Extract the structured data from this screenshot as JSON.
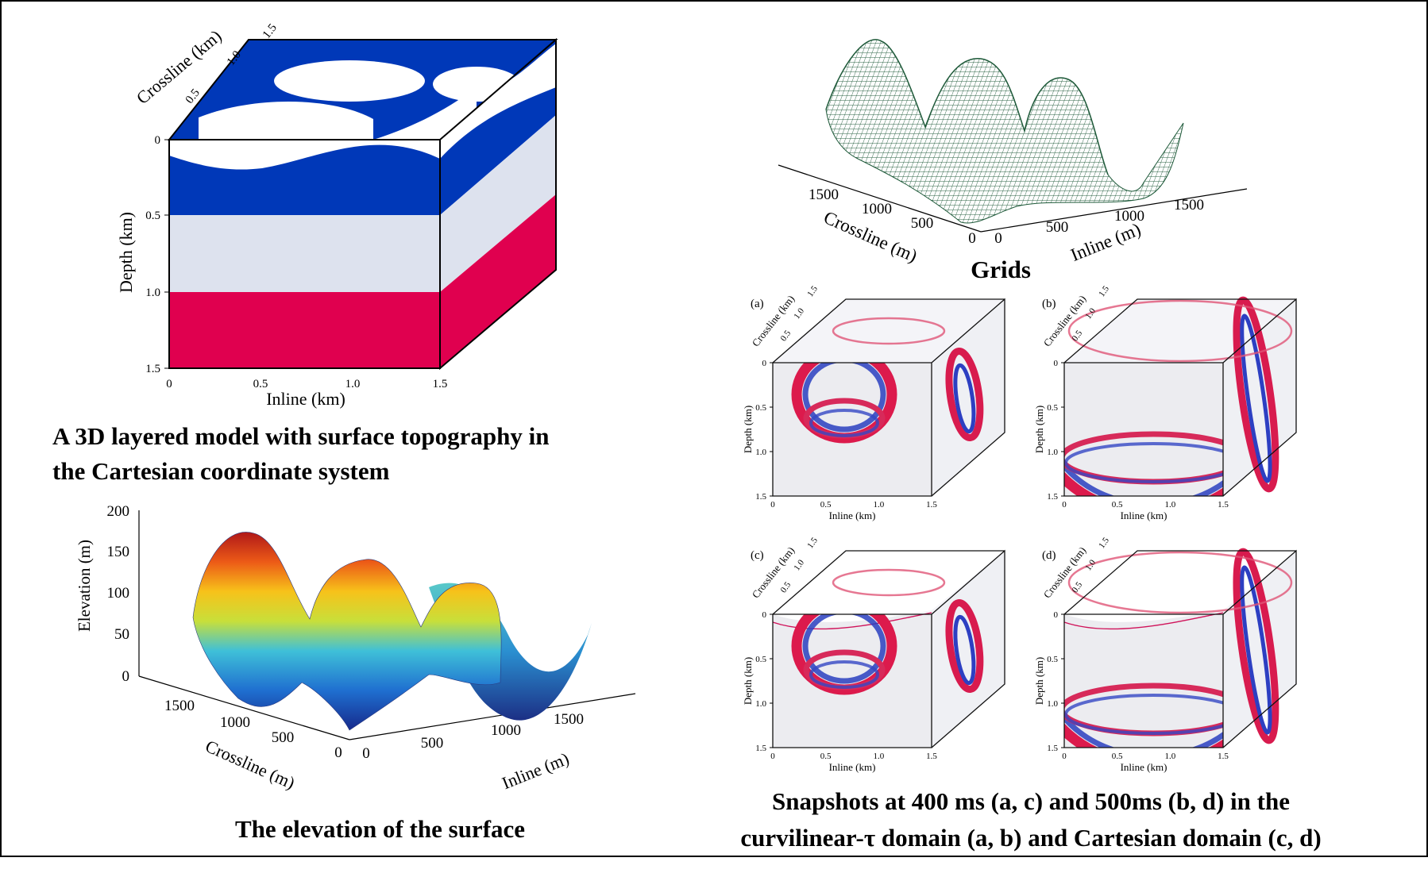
{
  "captions": {
    "model": [
      "A 3D layered model with surface topography in",
      "the Cartesian coordinate system"
    ],
    "elevation": "The elevation of the surface",
    "grids": "Grids",
    "snapshots": [
      "Snapshots at 400 ms (a, c) and 500ms (b, d) in the",
      "curvilinear-τ  domain (a, b) and Cartesian domain (c, d)"
    ]
  },
  "model_cube": {
    "depth_label": "Depth (km)",
    "inline_label": "Inline (km)",
    "crossline_label": "Crossline (km)",
    "depth_ticks": [
      "0",
      "0.5",
      "1.0",
      "1.5"
    ],
    "inline_ticks": [
      "0",
      "0.5",
      "1.0",
      "1.5"
    ],
    "crossline_ticks": [
      "0.5",
      "1.0",
      "1.5"
    ],
    "colors": {
      "top_layer": "#0038b8",
      "middle_layer": "#dde2ee",
      "bottom_layer": "#e0004f"
    }
  },
  "elevation_plot": {
    "ylabel": "Elevation (m)",
    "xlabel": "Crossline (m)",
    "zlabel": "Inline (m)",
    "y_ticks": [
      "200",
      "150",
      "100",
      "50",
      "0"
    ],
    "crossline_ticks": [
      "1500",
      "1000",
      "500",
      "0"
    ],
    "inline_ticks": [
      "0",
      "500",
      "1000",
      "1500"
    ]
  },
  "grid_plot": {
    "crossline_label": "Crossline (m)",
    "inline_label": "Inline (m)",
    "crossline_ticks": [
      "1500",
      "1000",
      "500",
      "0"
    ],
    "inline_ticks": [
      "0",
      "500",
      "1000",
      "1500"
    ],
    "mesh_color": "#1f5a3a"
  },
  "snapshots": [
    {
      "panel": "(a)"
    },
    {
      "panel": "(b)"
    },
    {
      "panel": "(c)"
    },
    {
      "panel": "(d)"
    }
  ],
  "snapshot_axes": {
    "depth_label": "Depth (km)",
    "inline_label": "Inline (km)",
    "crossline_label": "Crossline (km)",
    "depth_ticks": [
      "0",
      "0.5",
      "1.0",
      "1.5"
    ],
    "inline_ticks": [
      "0",
      "0.5",
      "1.0",
      "1.5"
    ],
    "crossline_ticks": [
      "0.5",
      "1.0",
      "1.5"
    ]
  }
}
